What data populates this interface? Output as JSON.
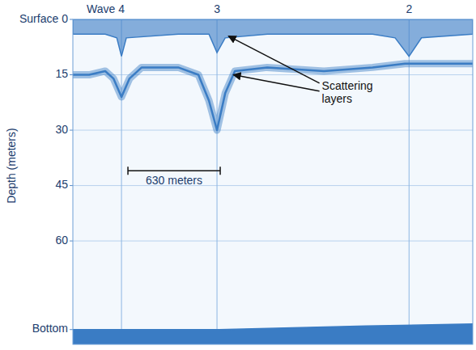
{
  "chart_data": {
    "type": "echogram",
    "y_label": "Depth (meters)",
    "surface_label": "Surface",
    "xlim": [
      0,
      2730
    ],
    "ylim": [
      0,
      88
    ],
    "yticks": [
      0,
      15,
      30,
      45,
      60,
      {
        "value": 84,
        "label": "Bottom"
      }
    ],
    "tick_labels": "y",
    "grid": true,
    "color": "#3a7cc4",
    "waves": [
      {
        "label": "Wave 4",
        "x": 332
      },
      {
        "label": "3",
        "x": 984
      },
      {
        "label": "2",
        "x": 2295
      }
    ],
    "series": [
      {
        "type": "area",
        "color": "#3a7cc4",
        "x": [
          0,
          221,
          300,
          332,
          365,
          719,
          929,
          984,
          1040,
          1327,
          2046,
          2200,
          2295,
          2380,
          2730
        ],
        "values": [
          4,
          4,
          5,
          10,
          5,
          4,
          4,
          9,
          5,
          4,
          4,
          5,
          10,
          5,
          4
        ]
      },
      {
        "type": "line",
        "color": "#3a7cc4",
        "x": [
          0,
          111,
          221,
          277,
          332,
          387,
          470,
          719,
          857,
          929,
          984,
          1040,
          1106,
          1327,
          1714,
          2046,
          2267,
          2433,
          2730
        ],
        "values": [
          15,
          15,
          14,
          16,
          21,
          16,
          13,
          13,
          15,
          22,
          30,
          20,
          14,
          13,
          14,
          13,
          12,
          12,
          12
        ]
      },
      {
        "type": "area",
        "color": "#3a7cc4",
        "x": [
          0,
          1000,
          1500,
          2000,
          2730
        ],
        "values": [
          84,
          84,
          83.5,
          83,
          82.5
        ]
      }
    ],
    "annotations": [
      {
        "text": "Scattering layers",
        "x": 1700,
        "y": 19,
        "arrows": [
          {
            "x": 1062,
            "y": 4.5
          },
          {
            "x": 1095,
            "y": 15
          }
        ]
      }
    ],
    "scale_bar": {
      "label": "630 meters",
      "x": 376,
      "length": 630,
      "depth": 41
    }
  }
}
